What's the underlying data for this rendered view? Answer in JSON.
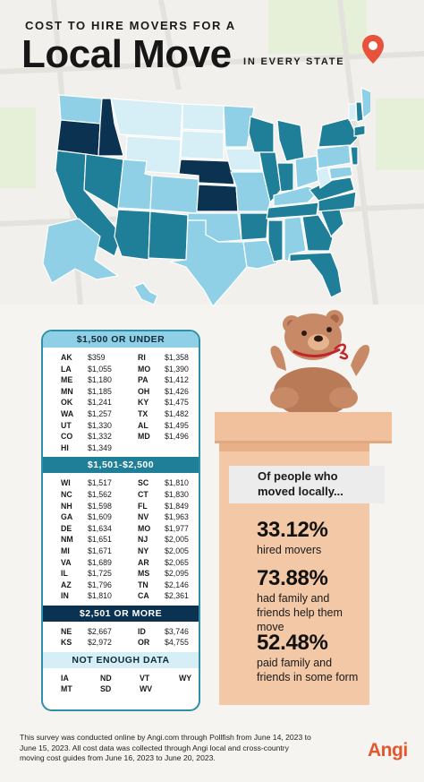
{
  "header": {
    "kicker": "COST TO HIRE MOVERS FOR A",
    "title": "Local Move",
    "subtitle": "IN EVERY STATE"
  },
  "colors": {
    "tier1": "#8fd0e6",
    "tier2": "#1f7e98",
    "tier3": "#0b3250",
    "no_data": "#d6eef6",
    "box": "#f3c8a6",
    "brand": "#e2572e"
  },
  "tables": {
    "tier1": {
      "heading": "$1,500 OR UNDER",
      "rows": [
        [
          "AK",
          "$359",
          "RI",
          "$1,358"
        ],
        [
          "LA",
          "$1,055",
          "MO",
          "$1,390"
        ],
        [
          "ME",
          "$1,180",
          "PA",
          "$1,412"
        ],
        [
          "MN",
          "$1,185",
          "OH",
          "$1,426"
        ],
        [
          "OK",
          "$1,241",
          "KY",
          "$1,475"
        ],
        [
          "WA",
          "$1,257",
          "TX",
          "$1,482"
        ],
        [
          "UT",
          "$1,330",
          "AL",
          "$1,495"
        ],
        [
          "CO",
          "$1,332",
          "MD",
          "$1,496"
        ],
        [
          "HI",
          "$1,349",
          "",
          ""
        ]
      ]
    },
    "tier2": {
      "heading": "$1,501-$2,500",
      "rows": [
        [
          "WI",
          "$1,517",
          "SC",
          "$1,810"
        ],
        [
          "NC",
          "$1,562",
          "CT",
          "$1,830"
        ],
        [
          "NH",
          "$1,598",
          "FL",
          "$1,849"
        ],
        [
          "GA",
          "$1,609",
          "NV",
          "$1,963"
        ],
        [
          "DE",
          "$1,634",
          "MO",
          "$1,977"
        ],
        [
          "NM",
          "$1,651",
          "NJ",
          "$2,005"
        ],
        [
          "MI",
          "$1,671",
          "NY",
          "$2,005"
        ],
        [
          "VA",
          "$1,689",
          "AR",
          "$2,065"
        ],
        [
          "IL",
          "$1,725",
          "MS",
          "$2,095"
        ],
        [
          "AZ",
          "$1,796",
          "TN",
          "$2,146"
        ],
        [
          "IN",
          "$1,810",
          "CA",
          "$2,361"
        ]
      ]
    },
    "tier3": {
      "heading": "$2,501 OR MORE",
      "rows": [
        [
          "NE",
          "$2,667",
          "ID",
          "$3,746"
        ],
        [
          "KS",
          "$2,972",
          "OR",
          "$4,755"
        ]
      ]
    },
    "no_data": {
      "heading": "NOT ENOUGH DATA",
      "rows": [
        [
          "IA",
          "ND",
          "VT",
          "WY"
        ],
        [
          "MT",
          "SD",
          "WV",
          ""
        ]
      ]
    }
  },
  "box": {
    "label": "Of people who moved locally...",
    "stats": [
      {
        "value": "33.12%",
        "text": "hired movers"
      },
      {
        "value": "73.88%",
        "text": "had family and friends help them move"
      },
      {
        "value": "52.48%",
        "text": "paid family and friends in some form"
      }
    ]
  },
  "footer": {
    "note": "This survey was conducted online by Angi.com through Pollfish from June 14, 2023 to June 15, 2023. All cost data was collected through Angi local and cross-country moving cost guides from June 16, 2023 to June 20, 2023.",
    "logo": "Angi"
  }
}
